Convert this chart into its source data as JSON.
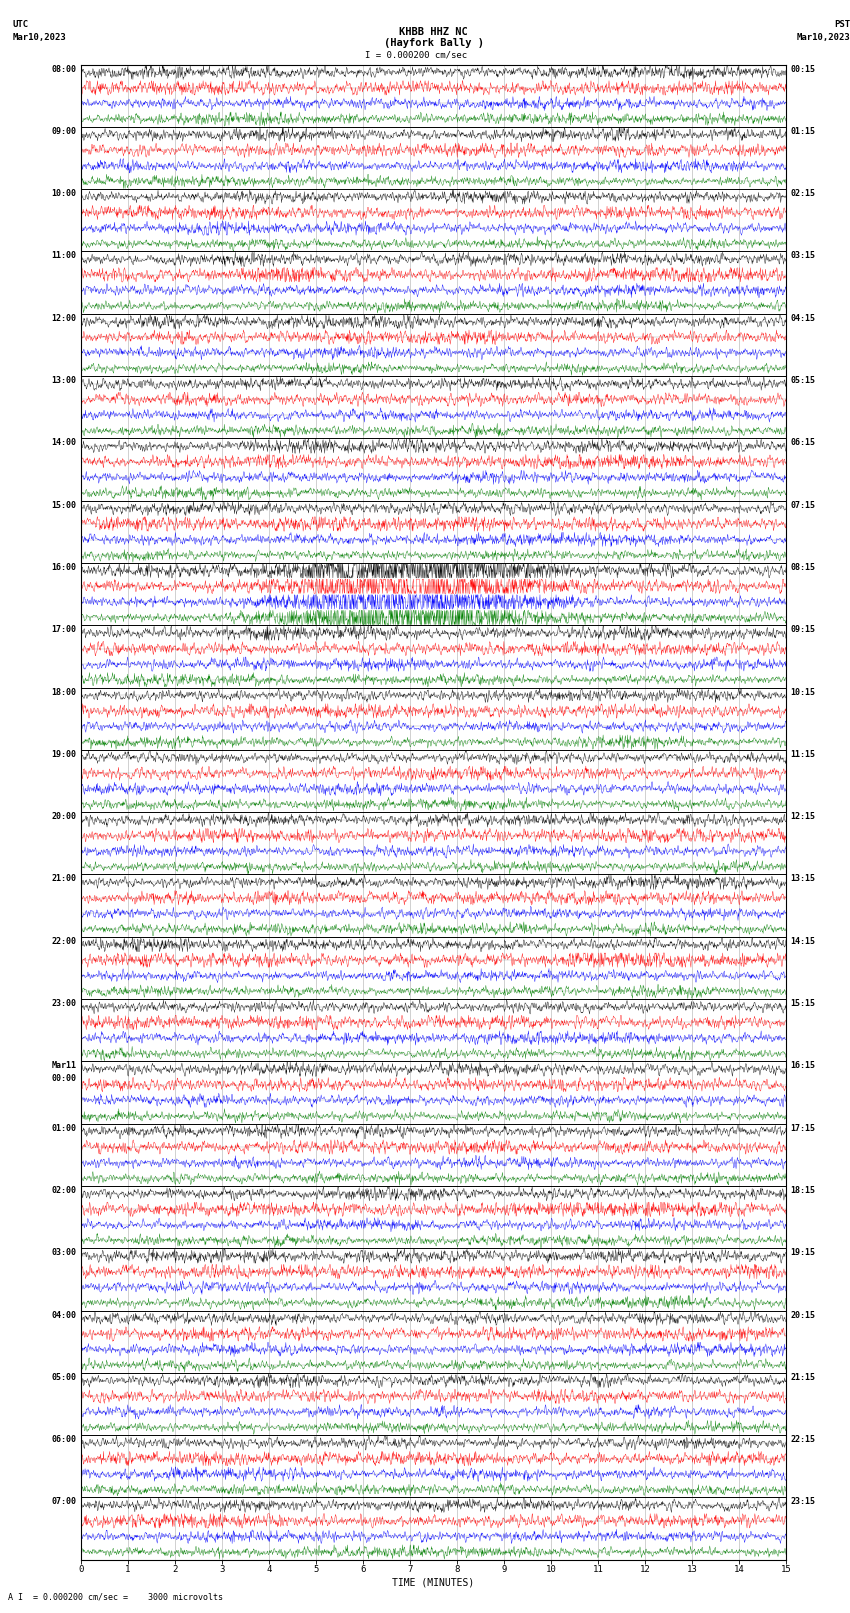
{
  "title_line1": "KHBB HHZ NC",
  "title_line2": "(Hayfork Bally )",
  "scale_text": "= 0.000200 cm/sec",
  "bottom_text": "= 0.000200 cm/sec =    3000 microvolts",
  "bottom_label": "A",
  "utc_label": "UTC",
  "utc_date": "Mar10,2023",
  "pst_label": "PST",
  "pst_date": "Mar10,2023",
  "xlabel": "TIME (MINUTES)",
  "left_times": [
    "08:00",
    "09:00",
    "10:00",
    "11:00",
    "12:00",
    "13:00",
    "14:00",
    "15:00",
    "16:00",
    "17:00",
    "18:00",
    "19:00",
    "20:00",
    "21:00",
    "22:00",
    "23:00",
    "Mar11\n00:00",
    "01:00",
    "02:00",
    "03:00",
    "04:00",
    "05:00",
    "06:00",
    "07:00"
  ],
  "right_times": [
    "00:15",
    "01:15",
    "02:15",
    "03:15",
    "04:15",
    "05:15",
    "06:15",
    "07:15",
    "08:15",
    "09:15",
    "10:15",
    "11:15",
    "12:15",
    "13:15",
    "14:15",
    "15:15",
    "16:15",
    "17:15",
    "18:15",
    "19:15",
    "20:15",
    "21:15",
    "22:15",
    "23:15"
  ],
  "n_rows": 24,
  "traces_per_row": 4,
  "colors": [
    "black",
    "red",
    "blue",
    "green"
  ],
  "bg_color": "white",
  "grid_color": "#999999",
  "x_min": 0,
  "x_max": 15,
  "xticks": [
    0,
    1,
    2,
    3,
    4,
    5,
    6,
    7,
    8,
    9,
    10,
    11,
    12,
    13,
    14,
    15
  ],
  "seed": 42,
  "font_size": 6.5,
  "title_font_size": 7.5,
  "lw_trace": 0.28,
  "lw_border": 0.7,
  "lw_grid": 0.4
}
